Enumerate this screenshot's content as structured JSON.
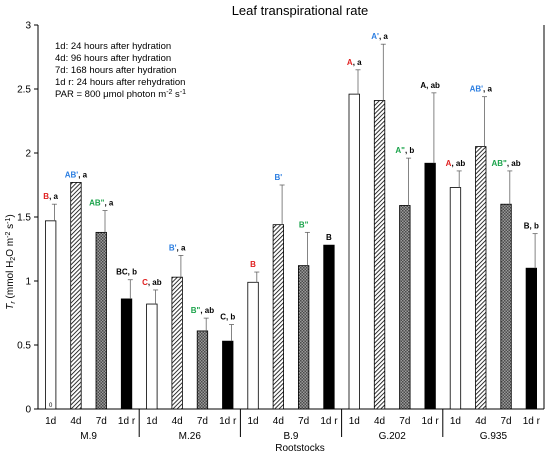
{
  "chart_data": {
    "type": "bar",
    "title": "Leaf transpirational rate",
    "ylabel": "T_r (mmol H2O m-2 s-1)",
    "ylabel_parts": {
      "T": "T",
      "r": "r",
      "mmol": "(mmol H",
      "two": "2",
      "o": "O m",
      "neg2": "-2",
      "s": " s",
      "neg1": "-1",
      "close": ")"
    },
    "xlabel": "Rootstocks",
    "ylim": [
      0,
      3
    ],
    "yticks": [
      "0",
      "0.5",
      "1",
      "1.5",
      "2",
      "2.5",
      "3"
    ],
    "series": [
      {
        "name": "1d",
        "fill": "white"
      },
      {
        "name": "4d",
        "fill": "diagonal-hatch"
      },
      {
        "name": "7d",
        "fill": "crosshatch"
      },
      {
        "name": "1d r",
        "fill": "black"
      }
    ],
    "groups": [
      {
        "name": "M.9",
        "bars": [
          {
            "label": "1d",
            "value": 1.47,
            "error": 0.13,
            "ann": [
              {
                "t": "B",
                "c": "#e02020"
              },
              {
                "t": ", a",
                "c": "#000000"
              }
            ]
          },
          {
            "label": "4d",
            "value": 1.77,
            "error": 0.0,
            "ann": [
              {
                "t": "AB'",
                "c": "#2a7de1"
              },
              {
                "t": ", a",
                "c": "#000000"
              }
            ]
          },
          {
            "label": "7d",
            "value": 1.38,
            "error": 0.17,
            "ann": [
              {
                "t": "AB\"",
                "c": "#1aa34a"
              },
              {
                "t": ", a",
                "c": "#000000"
              }
            ]
          },
          {
            "label": "1d r",
            "value": 0.86,
            "error": 0.15,
            "ann": [
              {
                "t": "BC, b",
                "c": "#000000"
              }
            ]
          }
        ]
      },
      {
        "name": "M.26",
        "bars": [
          {
            "label": "1d",
            "value": 0.82,
            "error": 0.11,
            "ann": [
              {
                "t": "C",
                "c": "#e02020"
              },
              {
                "t": ", ab",
                "c": "#000000"
              }
            ]
          },
          {
            "label": "4d",
            "value": 1.03,
            "error": 0.17,
            "ann": [
              {
                "t": "B'",
                "c": "#2a7de1"
              },
              {
                "t": ", a",
                "c": "#000000"
              }
            ]
          },
          {
            "label": "7d",
            "value": 0.61,
            "error": 0.1,
            "ann": [
              {
                "t": "B\"",
                "c": "#1aa34a"
              },
              {
                "t": ", ab",
                "c": "#000000"
              }
            ]
          },
          {
            "label": "1d r",
            "value": 0.53,
            "error": 0.13,
            "ann": [
              {
                "t": "C, b",
                "c": "#000000"
              }
            ]
          }
        ]
      },
      {
        "name": "B.9",
        "bars": [
          {
            "label": "1d",
            "value": 0.99,
            "error": 0.08,
            "ann": [
              {
                "t": "B",
                "c": "#e02020"
              }
            ]
          },
          {
            "label": "4d",
            "value": 1.44,
            "error": 0.31,
            "ann": [
              {
                "t": "B'",
                "c": "#2a7de1"
              }
            ]
          },
          {
            "label": "7d",
            "value": 1.12,
            "error": 0.26,
            "ann": [
              {
                "t": "B\"",
                "c": "#1aa34a"
              }
            ]
          },
          {
            "label": "1d r",
            "value": 1.28,
            "error": 0.0,
            "ann": [
              {
                "t": "B",
                "c": "#000000"
              }
            ]
          }
        ]
      },
      {
        "name": "G.202",
        "bars": [
          {
            "label": "1d",
            "value": 2.46,
            "error": 0.19,
            "ann": [
              {
                "t": "A",
                "c": "#e02020"
              },
              {
                "t": ", a",
                "c": "#000000"
              }
            ]
          },
          {
            "label": "4d",
            "value": 2.41,
            "error": 0.44,
            "ann": [
              {
                "t": "A'",
                "c": "#2a7de1"
              },
              {
                "t": ", a",
                "c": "#000000"
              }
            ]
          },
          {
            "label": "7d",
            "value": 1.59,
            "error": 0.37,
            "ann": [
              {
                "t": "A\"",
                "c": "#1aa34a"
              },
              {
                "t": ", b",
                "c": "#000000"
              }
            ]
          },
          {
            "label": "1d r",
            "value": 1.92,
            "error": 0.55,
            "ann": [
              {
                "t": "A, ab",
                "c": "#000000"
              }
            ]
          }
        ]
      },
      {
        "name": "G.935",
        "bars": [
          {
            "label": "1d",
            "value": 1.73,
            "error": 0.13,
            "ann": [
              {
                "t": "A",
                "c": "#e02020"
              },
              {
                "t": ", ab",
                "c": "#000000"
              }
            ]
          },
          {
            "label": "4d",
            "value": 2.05,
            "error": 0.39,
            "ann": [
              {
                "t": "AB'",
                "c": "#2a7de1"
              },
              {
                "t": ", a",
                "c": "#000000"
              }
            ]
          },
          {
            "label": "7d",
            "value": 1.6,
            "error": 0.26,
            "ann": [
              {
                "t": "AB\"",
                "c": "#1aa34a"
              },
              {
                "t": ", ab",
                "c": "#000000"
              }
            ]
          },
          {
            "label": "1d r",
            "value": 1.1,
            "error": 0.27,
            "ann": [
              {
                "t": "B, b",
                "c": "#000000"
              }
            ]
          }
        ]
      }
    ],
    "annotations": [
      "1d: 24 hours after hydration",
      "4d: 96 hours after hydration",
      "7d: 168 hours after hydration",
      "1d r: 24 hours after rehydration"
    ],
    "par_note": {
      "text": "PAR = 800 μmol photon m",
      "sup": "-2",
      "tail": " s",
      "sup2": "-1"
    },
    "baseline_marker": "0"
  }
}
